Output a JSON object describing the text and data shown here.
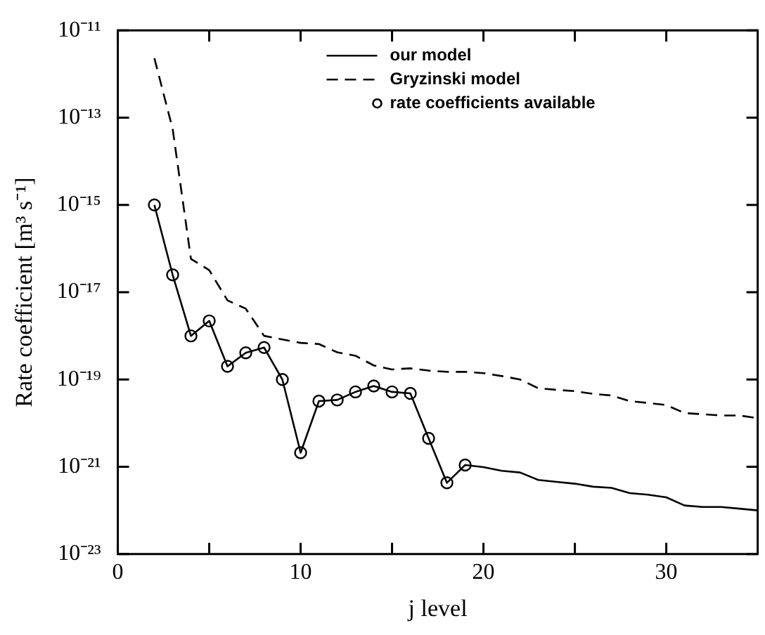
{
  "chart_data": {
    "type": "line",
    "xlabel": "j level",
    "ylabel": "Rate coefficient [m³ s⁻¹]",
    "x": [
      2,
      3,
      4,
      5,
      6,
      7,
      8,
      9,
      10,
      11,
      12,
      13,
      14,
      15,
      16,
      17,
      18,
      19,
      20,
      21,
      22,
      23,
      24,
      25,
      26,
      27,
      28,
      29,
      30,
      31,
      32,
      33,
      34,
      35
    ],
    "xlim": [
      0,
      35
    ],
    "xticks": [
      0,
      {
        "value": 5,
        "label": null
      },
      10,
      {
        "value": 15,
        "label": null
      },
      20,
      {
        "value": 25,
        "label": null
      },
      30
    ],
    "ylim": [
      1e-23,
      1e-11
    ],
    "log": "y",
    "yticks": [
      {
        "value": 1e-23,
        "label": "10⁻²³"
      },
      {
        "value": 1e-21,
        "label": "10⁻²¹"
      },
      {
        "value": 1e-19,
        "label": "10⁻¹⁹"
      },
      {
        "value": 1e-17,
        "label": "10⁻¹⁷"
      },
      {
        "value": 1e-15,
        "label": "10⁻¹⁵"
      },
      {
        "value": 1e-13,
        "label": "10⁻¹³"
      },
      {
        "value": 1e-11,
        "label": "10⁻¹¹"
      }
    ],
    "legend": "top",
    "series": [
      {
        "name": "our model",
        "type": "line",
        "color": "#000000",
        "line_style": "solid",
        "marker": "none",
        "values": [
          1e-15,
          2.5e-17,
          1e-18,
          2.2e-18,
          2e-19,
          4.1e-19,
          5.4e-19,
          1e-19,
          2.1e-21,
          3.2e-20,
          3.4e-20,
          5.2e-20,
          7.1e-20,
          5.2e-20,
          4.8e-20,
          4.5e-21,
          4.3e-22,
          1.1e-21,
          9.8e-22,
          8.1e-22,
          7.4e-22,
          5e-22,
          4.5e-22,
          4.1e-22,
          3.5e-22,
          3.3e-22,
          2.5e-22,
          2.3e-22,
          2e-22,
          1.3e-22,
          1.2e-22,
          1.2e-22,
          1.1e-22,
          1e-22
        ]
      },
      {
        "name": "Gryzinski model",
        "type": "line",
        "color": "#000000",
        "line_style": "dashed",
        "marker": "none",
        "values": [
          2.3e-12,
          5.5e-14,
          5.8e-17,
          3.2e-17,
          6.5e-18,
          4.2e-18,
          1e-18,
          8.3e-19,
          6.9e-19,
          6.5e-19,
          4.2e-19,
          3.5e-19,
          2.1e-19,
          1.7e-19,
          1.8e-19,
          1.6e-19,
          1.5e-19,
          1.5e-19,
          1.4e-19,
          1.2e-19,
          1e-19,
          6.3e-20,
          5.8e-20,
          5.4e-20,
          4.7e-20,
          4.3e-20,
          3.2e-20,
          2.9e-20,
          2.6e-20,
          1.7e-20,
          1.6e-20,
          1.5e-20,
          1.5e-20,
          1.3e-20
        ]
      },
      {
        "name": "rate coefficients available",
        "type": "scatter",
        "color": "#000000",
        "marker": "circle",
        "x": [
          2,
          3,
          4,
          5,
          6,
          7,
          8,
          9,
          10,
          11,
          12,
          13,
          14,
          15,
          16,
          17,
          18,
          19
        ],
        "values": [
          1e-15,
          2.5e-17,
          1e-18,
          2.2e-18,
          2e-19,
          4.1e-19,
          5.4e-19,
          1e-19,
          2.1e-21,
          3.2e-20,
          3.4e-20,
          5.2e-20,
          7.1e-20,
          5.2e-20,
          4.8e-20,
          4.5e-21,
          4.3e-22,
          1.1e-21
        ]
      }
    ]
  }
}
